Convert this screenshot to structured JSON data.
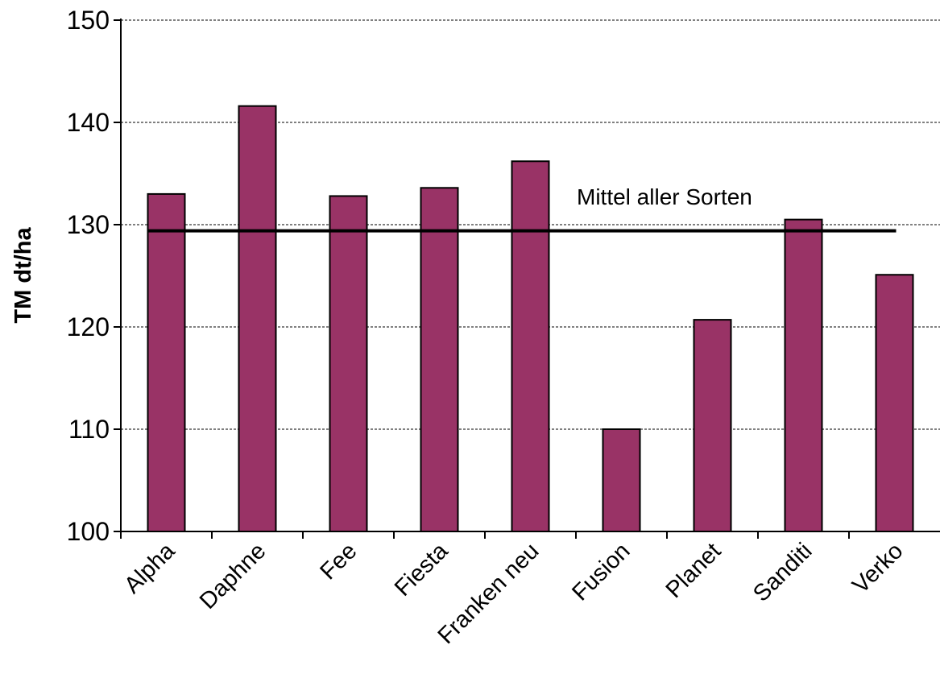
{
  "chart_data": {
    "type": "bar",
    "categories": [
      "Alpha",
      "Daphne",
      "Fee",
      "Fiesta",
      "Franken neu",
      "Fusion",
      "Planet",
      "Sanditi",
      "Verko"
    ],
    "values": [
      133,
      141.6,
      132.8,
      133.6,
      136.2,
      110,
      120.7,
      130.5,
      125.1
    ],
    "ylabel": "TM dt/ha",
    "xlabel": "",
    "ylim": [
      100,
      150
    ],
    "yticks": [
      100,
      110,
      120,
      130,
      140,
      150
    ],
    "grid": true,
    "bar_color": "#993366",
    "reference_line": {
      "label": "Mittel aller Sorten",
      "value": 129.4
    }
  }
}
